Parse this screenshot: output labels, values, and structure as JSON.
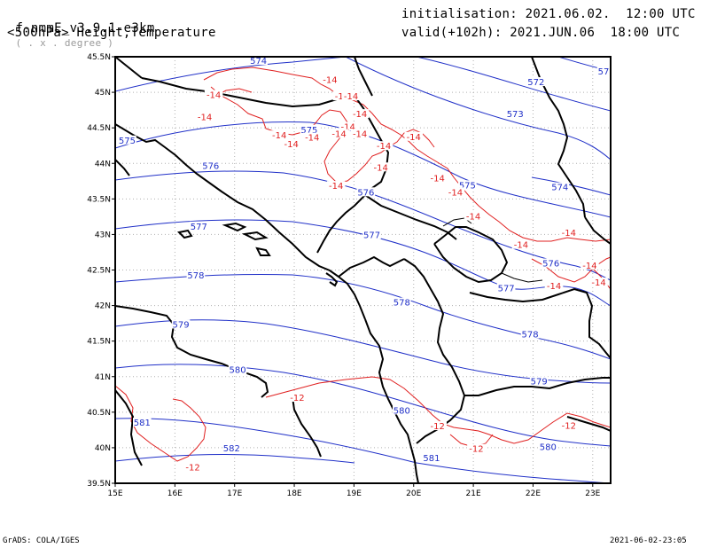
{
  "header": {
    "model_name": "f-nmmE_v3.9.1-e3km",
    "projection_note": "( . x . degree )",
    "level_title": "<500hPa> Height,Temperature",
    "initialisation": "initialisation: 2021.06.02.  12:00 UTC",
    "valid": "valid(+102h): 2021.JUN.06  18:00 UTC"
  },
  "footer": {
    "credit": "GrADS: COLA/IGES",
    "timestamp": "2021-06-02-23:05"
  },
  "map": {
    "extent": {
      "lon": [
        15,
        23.3
      ],
      "lat": [
        39.5,
        45.5
      ]
    },
    "lon_ticks": [
      "15E",
      "16E",
      "17E",
      "18E",
      "19E",
      "20E",
      "21E",
      "22E",
      "23E"
    ],
    "lat_ticks": [
      "39.5N",
      "40N",
      "40.5N",
      "41N",
      "41.5N",
      "42N",
      "42.5N",
      "43N",
      "43.5N",
      "44N",
      "44.5N",
      "45N",
      "45.5N"
    ],
    "grid": true,
    "colors": {
      "height": "#2030c8",
      "temperature": "#e02020",
      "border": "#000000",
      "grid": "#b0b0b0"
    },
    "height_labels": [
      {
        "text": "574",
        "lon": 17.4,
        "lat": 45.45
      },
      {
        "text": "572",
        "lon": 22.05,
        "lat": 45.15
      },
      {
        "text": "573",
        "lon": 21.7,
        "lat": 44.7
      },
      {
        "text": "57",
        "lon": 23.25,
        "lat": 45.3
      },
      {
        "text": "575",
        "lon": 15.2,
        "lat": 44.33
      },
      {
        "text": "575",
        "lon": 18.25,
        "lat": 44.48
      },
      {
        "text": "575",
        "lon": 20.9,
        "lat": 43.7
      },
      {
        "text": "574",
        "lon": 22.45,
        "lat": 43.67
      },
      {
        "text": "576",
        "lon": 16.6,
        "lat": 43.97
      },
      {
        "text": "576",
        "lon": 19.2,
        "lat": 43.6
      },
      {
        "text": "576",
        "lon": 22.3,
        "lat": 42.6
      },
      {
        "text": "577",
        "lon": 16.4,
        "lat": 43.12
      },
      {
        "text": "577",
        "lon": 19.3,
        "lat": 43.0
      },
      {
        "text": "577",
        "lon": 21.55,
        "lat": 42.25
      },
      {
        "text": "578",
        "lon": 16.35,
        "lat": 42.43
      },
      {
        "text": "578",
        "lon": 19.8,
        "lat": 42.05
      },
      {
        "text": "578",
        "lon": 21.95,
        "lat": 41.6
      },
      {
        "text": "579",
        "lon": 16.1,
        "lat": 41.74
      },
      {
        "text": "579",
        "lon": 22.1,
        "lat": 40.94
      },
      {
        "text": "580",
        "lon": 17.05,
        "lat": 41.1
      },
      {
        "text": "580",
        "lon": 19.8,
        "lat": 40.53
      },
      {
        "text": "580",
        "lon": 22.25,
        "lat": 40.02
      },
      {
        "text": "581",
        "lon": 15.45,
        "lat": 40.36
      },
      {
        "text": "581",
        "lon": 20.3,
        "lat": 39.86
      },
      {
        "text": "582",
        "lon": 16.95,
        "lat": 40.0
      }
    ],
    "temperature_labels": [
      {
        "text": "-14",
        "lon": 18.6,
        "lat": 45.18
      },
      {
        "text": "-14",
        "lon": 16.65,
        "lat": 44.97
      },
      {
        "text": "-14",
        "lon": 16.5,
        "lat": 44.66
      },
      {
        "text": "-14",
        "lon": 18.8,
        "lat": 44.95
      },
      {
        "text": "-14",
        "lon": 18.95,
        "lat": 44.95
      },
      {
        "text": "-14",
        "lon": 19.1,
        "lat": 44.7
      },
      {
        "text": "-14",
        "lon": 18.9,
        "lat": 44.52
      },
      {
        "text": "-14",
        "lon": 18.75,
        "lat": 44.42
      },
      {
        "text": "-14",
        "lon": 19.1,
        "lat": 44.42
      },
      {
        "text": "-14",
        "lon": 17.75,
        "lat": 44.4
      },
      {
        "text": "-14",
        "lon": 17.95,
        "lat": 44.28
      },
      {
        "text": "-14",
        "lon": 18.3,
        "lat": 44.37
      },
      {
        "text": "-14",
        "lon": 20.0,
        "lat": 44.38
      },
      {
        "text": "-14",
        "lon": 19.5,
        "lat": 44.25
      },
      {
        "text": "-14",
        "lon": 19.45,
        "lat": 43.95
      },
      {
        "text": "-14",
        "lon": 20.4,
        "lat": 43.8
      },
      {
        "text": "-14",
        "lon": 20.7,
        "lat": 43.6
      },
      {
        "text": "-14",
        "lon": 18.7,
        "lat": 43.69
      },
      {
        "text": "-14",
        "lon": 21.0,
        "lat": 43.26
      },
      {
        "text": "-14",
        "lon": 21.8,
        "lat": 42.86
      },
      {
        "text": "-14",
        "lon": 22.6,
        "lat": 43.03
      },
      {
        "text": "-14",
        "lon": 22.95,
        "lat": 42.57
      },
      {
        "text": "-14",
        "lon": 23.1,
        "lat": 42.33
      },
      {
        "text": "-14",
        "lon": 22.35,
        "lat": 42.28
      },
      {
        "text": "-12",
        "lon": 18.05,
        "lat": 40.71
      },
      {
        "text": "-12",
        "lon": 20.4,
        "lat": 40.31
      },
      {
        "text": "-12",
        "lon": 21.05,
        "lat": 39.99
      },
      {
        "text": "-12",
        "lon": 22.6,
        "lat": 40.32
      },
      {
        "text": "-12",
        "lon": 16.3,
        "lat": 39.73
      }
    ]
  }
}
